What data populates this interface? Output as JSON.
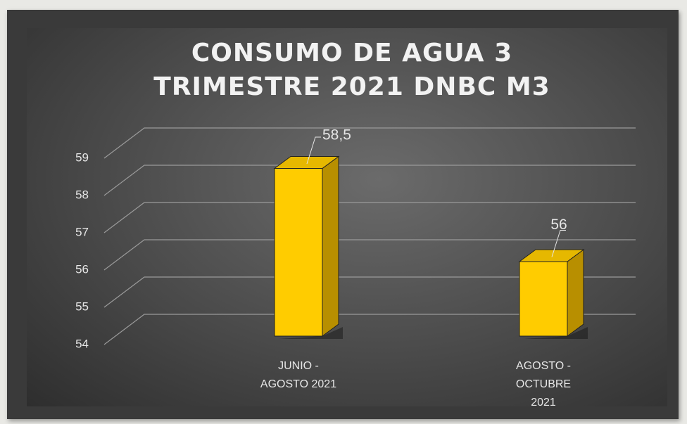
{
  "chart_data": {
    "type": "bar3d",
    "title": "CONSUMO DE AGUA 3 TRIMESTRE 2021 DNBC M3",
    "categories": [
      "JUNIO - AGOSTO 2021",
      "AGOSTO - OCTUBRE 2021"
    ],
    "values": [
      58.5,
      56
    ],
    "value_labels": [
      "58,5",
      "56"
    ],
    "color": "#ffcc00",
    "ylim": [
      54,
      59
    ],
    "yticks": [
      54,
      55,
      56,
      57,
      58,
      59
    ],
    "grid": true
  }
}
